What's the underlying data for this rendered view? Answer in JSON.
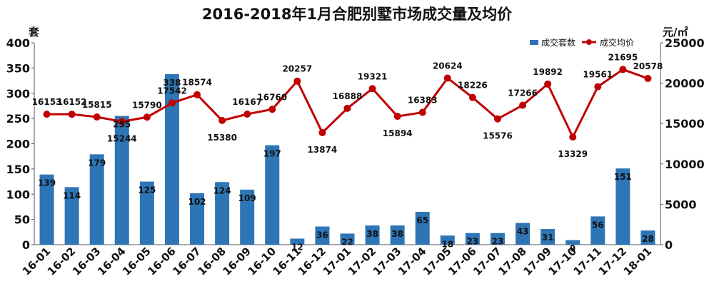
{
  "chart_data": {
    "type": "bar+line",
    "title": "2016-2018年1月合肥别墅市场成交量及均价",
    "left_unit": "套",
    "right_unit": "元/㎡",
    "categories": [
      "16-01",
      "16-02",
      "16-03",
      "16-04",
      "16-05",
      "16-06",
      "16-07",
      "16-08",
      "16-09",
      "16-10",
      "16-11",
      "16-12",
      "17-01",
      "17-02",
      "17-03",
      "17-04",
      "17-05",
      "17-06",
      "17-07",
      "17-08",
      "17-09",
      "17-10",
      "17-11",
      "17-12",
      "18-01"
    ],
    "series": [
      {
        "name": "成交套数",
        "type": "bar",
        "axis": "left",
        "color": "#2E75B6",
        "values": [
          139,
          114,
          179,
          255,
          125,
          338,
          102,
          124,
          109,
          197,
          12,
          36,
          22,
          38,
          38,
          65,
          18,
          23,
          23,
          43,
          31,
          9,
          56,
          151,
          28
        ]
      },
      {
        "name": "成交均价",
        "type": "line",
        "axis": "right",
        "color": "#C00000",
        "values": [
          16153,
          16152,
          15815,
          15244,
          15790,
          17542,
          18574,
          15380,
          16167,
          16760,
          20257,
          13874,
          16888,
          19321,
          15894,
          16383,
          20624,
          18226,
          15576,
          17266,
          19892,
          13329,
          19561,
          21695,
          20578
        ]
      }
    ],
    "left_ylim": [
      0,
      400
    ],
    "left_ticks": [
      0,
      50,
      100,
      150,
      200,
      250,
      300,
      350,
      400
    ],
    "right_ylim": [
      0,
      25000
    ],
    "right_ticks": [
      0,
      5000,
      10000,
      15000,
      20000,
      25000
    ],
    "legend_position": "top-right",
    "grid": false
  }
}
